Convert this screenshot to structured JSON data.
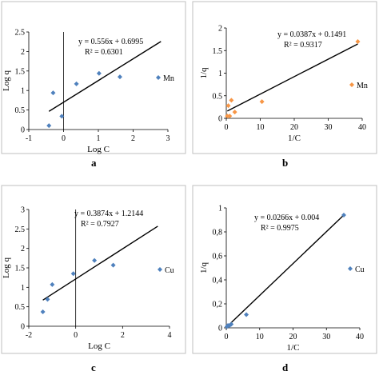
{
  "panel_letters": [
    "a",
    "b",
    "c",
    "d"
  ],
  "chart_data": [
    {
      "type": "scatter",
      "panel": "a",
      "xlabel": "Log C",
      "ylabel": "Log q",
      "xlim": [
        -1,
        3
      ],
      "ylim": [
        0,
        2.5
      ],
      "xticks": [
        "-1",
        "0",
        "1",
        "2",
        "3"
      ],
      "yticks": [
        "0",
        "0.5",
        "1",
        "1.5",
        "2",
        "2.5"
      ],
      "legend": "top-right",
      "series": [
        {
          "name": "Mn",
          "color": "#4f81bd",
          "x": [
            -0.42,
            -0.3,
            -0.05,
            0.37,
            1.02,
            1.62
          ],
          "y": [
            0.1,
            0.94,
            0.34,
            1.17,
            1.44,
            1.35
          ]
        }
      ],
      "trendline": {
        "slope": 0.556,
        "intercept": 0.6995,
        "x_range": [
          -0.42,
          2.8
        ]
      },
      "equation": "y = 0.556x + 0.6995",
      "r2": "R² = 0.6301"
    },
    {
      "type": "scatter",
      "panel": "b",
      "xlabel": "1/C",
      "ylabel": "1/q",
      "xlim": [
        0,
        40
      ],
      "ylim": [
        0,
        2
      ],
      "xticks": [
        "0",
        "10",
        "20",
        "30",
        "40"
      ],
      "yticks": [
        "0",
        "0.5",
        "1",
        "1.5",
        "2"
      ],
      "legend": "top-right",
      "series": [
        {
          "name": "Mn",
          "color": "#f79646",
          "x": [
            0.3,
            0.6,
            1.0,
            1.5,
            2.5,
            10.5,
            38.7
          ],
          "y": [
            0.05,
            0.28,
            0.05,
            0.4,
            0.14,
            0.37,
            1.7
          ]
        }
      ],
      "trendline": {
        "slope": 0.0387,
        "intercept": 0.1491,
        "x_range": [
          0.3,
          38.7
        ]
      },
      "equation": "y = 0.0387x + 0.1491",
      "r2": "R² = 0.9317"
    },
    {
      "type": "scatter",
      "panel": "c",
      "xlabel": "Log C",
      "ylabel": "Log q",
      "xlim": [
        -2,
        4
      ],
      "ylim": [
        0,
        3
      ],
      "xticks": [
        "-2",
        "0",
        "2",
        "4"
      ],
      "yticks": [
        "0",
        "0.5",
        "1",
        "1.5",
        "2",
        "2.5",
        "3"
      ],
      "legend": "top-right",
      "series": [
        {
          "name": "Cu",
          "color": "#4f81bd",
          "x": [
            -1.4,
            -1.2,
            -1.0,
            -0.1,
            0.8,
            1.6
          ],
          "y": [
            0.37,
            0.69,
            1.07,
            1.35,
            1.69,
            1.57
          ]
        }
      ],
      "trendline": {
        "slope": 0.3874,
        "intercept": 1.2144,
        "x_range": [
          -1.4,
          3.5
        ]
      },
      "equation": "y = 0.3874x + 1.2144",
      "r2": "R² = 0.7927"
    },
    {
      "type": "scatter",
      "panel": "d",
      "xlabel": "1/C",
      "ylabel": "1/q",
      "xlim": [
        0,
        40
      ],
      "ylim": [
        0,
        1
      ],
      "xticks": [
        "0",
        "10",
        "20",
        "30",
        "40"
      ],
      "yticks": [
        "0",
        "0,2",
        "0,4",
        "0,6",
        "0,8",
        "1"
      ],
      "legend": "top-right",
      "series": [
        {
          "name": "Cu",
          "color": "#4f81bd",
          "x": [
            0.2,
            0.5,
            1.0,
            1.5,
            6.0,
            35.2
          ],
          "y": [
            0.01,
            0.02,
            0.02,
            0.03,
            0.11,
            0.94
          ]
        }
      ],
      "trendline": {
        "slope": 0.0266,
        "intercept": 0.004,
        "x_range": [
          0,
          35.2
        ]
      },
      "equation": "y = 0.0266x + 0.004",
      "r2": "R² = 0.9975"
    }
  ]
}
